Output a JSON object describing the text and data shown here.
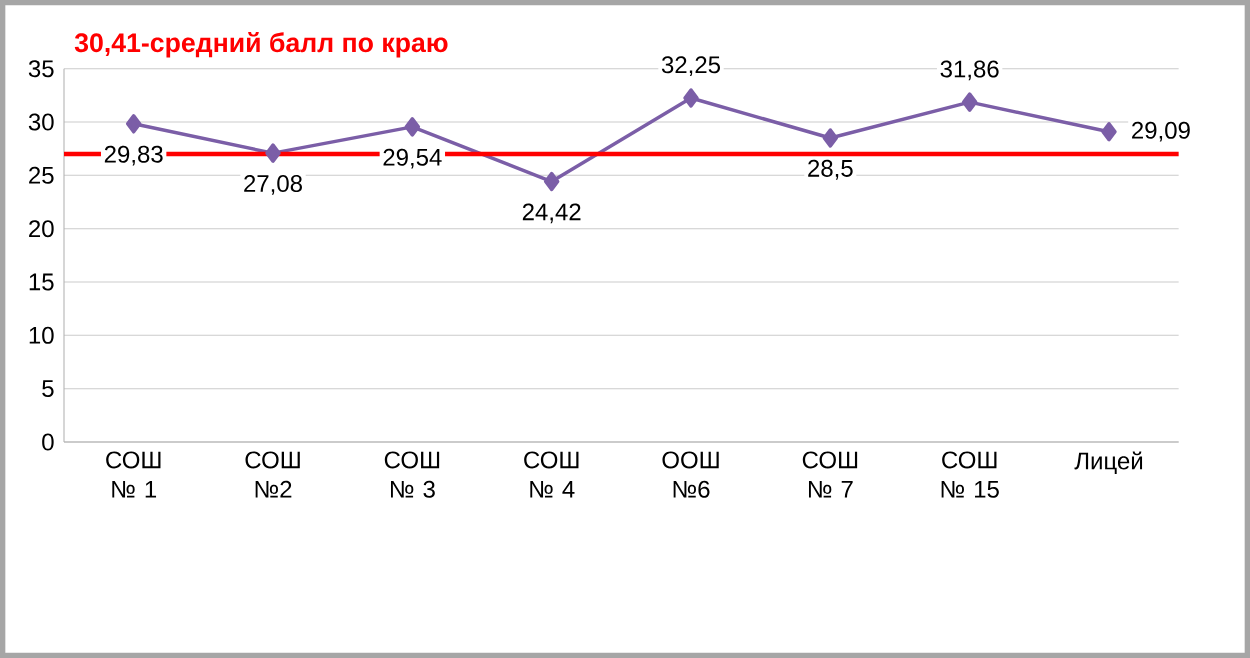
{
  "chart_data": {
    "type": "line",
    "categories": [
      "СОШ № 1",
      "СОШ №2",
      "СОШ № 3",
      "СОШ № 4",
      "ООШ №6",
      "СОШ № 7",
      "СОШ № 15",
      "Лицей"
    ],
    "series": [
      {
        "color": "#7b5ea7",
        "values": [
          29.83,
          27.08,
          29.54,
          24.42,
          32.25,
          28.5,
          31.86,
          29.09
        ]
      }
    ],
    "value_labels": [
      "29,83",
      "27,08",
      "29,54",
      "24,42",
      "32,25",
      "28,5",
      "31,86",
      "29,09"
    ],
    "ylim": [
      0,
      35
    ],
    "yticks": [
      0,
      5,
      10,
      15,
      20,
      25,
      30,
      35
    ],
    "grid": "y",
    "marker": "diamond",
    "line_style": "solid",
    "ref_lines": [
      {
        "axis": "y",
        "value": 27,
        "label": "30,41-средний балл по краю",
        "color": "#ff0000"
      }
    ]
  }
}
